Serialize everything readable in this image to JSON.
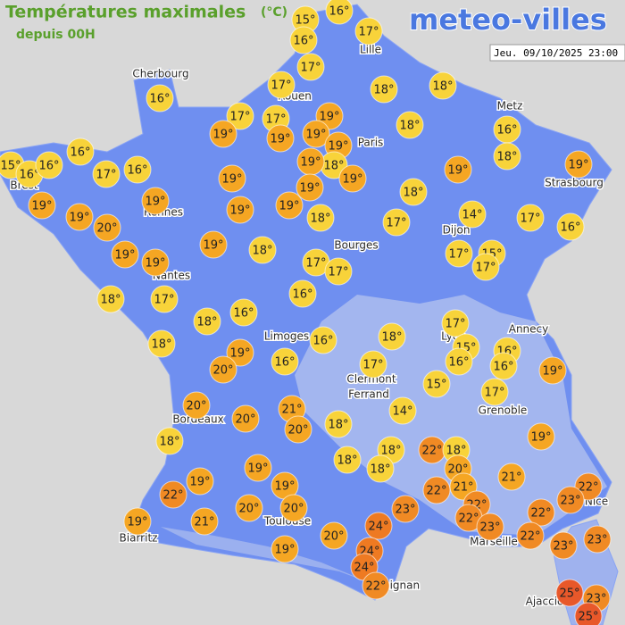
{
  "header": {
    "title": "Températures maximales",
    "unit": "(°C)",
    "subtitle": "depuis 00H",
    "logo": "meteo-villes",
    "datetime": "Jeu. 09/10/2025 23:00"
  },
  "cities": [
    "Cherbourg",
    "Rouen",
    "Lille",
    "Metz",
    "Paris",
    "Strasbourg",
    "Brest",
    "Rennes",
    "Nantes",
    "Bourges",
    "Dijon",
    "Limoges",
    "Annecy",
    "Lyon",
    "Clermont",
    "Ferrand",
    "Grenoble",
    "Bordeaux",
    "Toulouse",
    "Biarritz",
    "Marseille",
    "Nice",
    "Ajaccio",
    "Perpignan"
  ],
  "markers": [
    {
      "label": "15°",
      "color": "#f8d33a"
    },
    {
      "label": "16°",
      "color": "#f8d33a"
    },
    {
      "label": "17°",
      "color": "#f8d33a"
    },
    {
      "label": "16°",
      "color": "#f8d33a"
    },
    {
      "label": "17°",
      "color": "#f8d33a"
    },
    {
      "label": "16°",
      "color": "#f8d33a"
    },
    {
      "label": "17°",
      "color": "#f8d33a"
    },
    {
      "label": "18°",
      "color": "#f8d33a"
    },
    {
      "label": "18°",
      "color": "#f8d33a"
    },
    {
      "label": "17°",
      "color": "#f8d33a"
    },
    {
      "label": "17°",
      "color": "#f8d33a"
    },
    {
      "label": "19°",
      "color": "#f5a623"
    },
    {
      "label": "18°",
      "color": "#f8d33a"
    },
    {
      "label": "16°",
      "color": "#f8d33a"
    },
    {
      "label": "19°",
      "color": "#f5a623"
    },
    {
      "label": "19°",
      "color": "#f5a623"
    },
    {
      "label": "19°",
      "color": "#f5a623"
    },
    {
      "label": "19°",
      "color": "#f5a623"
    },
    {
      "label": "18°",
      "color": "#f8d33a"
    },
    {
      "label": "15°",
      "color": "#f8d33a"
    },
    {
      "label": "16°",
      "color": "#f8d33a"
    },
    {
      "label": "16°",
      "color": "#f8d33a"
    },
    {
      "label": "16°",
      "color": "#f8d33a"
    },
    {
      "label": "17°",
      "color": "#f8d33a"
    },
    {
      "label": "16°",
      "color": "#f8d33a"
    },
    {
      "label": "19°",
      "color": "#f5a623"
    },
    {
      "label": "19°",
      "color": "#f5a623"
    },
    {
      "label": "19°",
      "color": "#f5a623"
    },
    {
      "label": "18°",
      "color": "#f8d33a"
    },
    {
      "label": "19°",
      "color": "#f5a623"
    },
    {
      "label": "19°",
      "color": "#f5a623"
    },
    {
      "label": "19°",
      "color": "#f5a623"
    },
    {
      "label": "19°",
      "color": "#f5a623"
    },
    {
      "label": "19°",
      "color": "#f5a623"
    },
    {
      "label": "19°",
      "color": "#f5a623"
    },
    {
      "label": "19°",
      "color": "#f5a623"
    },
    {
      "label": "18°",
      "color": "#f8d33a"
    },
    {
      "label": "19°",
      "color": "#f5a623"
    },
    {
      "label": "20°",
      "color": "#f5a623"
    },
    {
      "label": "18°",
      "color": "#f8d33a"
    },
    {
      "label": "17°",
      "color": "#f8d33a"
    },
    {
      "label": "14°",
      "color": "#f8d33a"
    },
    {
      "label": "17°",
      "color": "#f8d33a"
    },
    {
      "label": "16°",
      "color": "#f8d33a"
    },
    {
      "label": "19°",
      "color": "#f5a623"
    },
    {
      "label": "19°",
      "color": "#f5a623"
    },
    {
      "label": "19°",
      "color": "#f5a623"
    },
    {
      "label": "18°",
      "color": "#f8d33a"
    },
    {
      "label": "17°",
      "color": "#f8d33a"
    },
    {
      "label": "17°",
      "color": "#f8d33a"
    },
    {
      "label": "17°",
      "color": "#f8d33a"
    },
    {
      "label": "15°",
      "color": "#f8d33a"
    },
    {
      "label": "17°",
      "color": "#f8d33a"
    },
    {
      "label": "18°",
      "color": "#f8d33a"
    },
    {
      "label": "17°",
      "color": "#f8d33a"
    },
    {
      "label": "16°",
      "color": "#f8d33a"
    },
    {
      "label": "18°",
      "color": "#f8d33a"
    },
    {
      "label": "16°",
      "color": "#f8d33a"
    },
    {
      "label": "18°",
      "color": "#f8d33a"
    },
    {
      "label": "19°",
      "color": "#f5a623"
    },
    {
      "label": "16°",
      "color": "#f8d33a"
    },
    {
      "label": "18°",
      "color": "#f8d33a"
    },
    {
      "label": "17°",
      "color": "#f8d33a"
    },
    {
      "label": "15°",
      "color": "#f8d33a"
    },
    {
      "label": "16°",
      "color": "#f8d33a"
    },
    {
      "label": "16°",
      "color": "#f8d33a"
    },
    {
      "label": "16°",
      "color": "#f8d33a"
    },
    {
      "label": "19°",
      "color": "#f5a623"
    },
    {
      "label": "20°",
      "color": "#f5a623"
    },
    {
      "label": "16°",
      "color": "#f8d33a"
    },
    {
      "label": "17°",
      "color": "#f8d33a"
    },
    {
      "label": "15°",
      "color": "#f8d33a"
    },
    {
      "label": "17°",
      "color": "#f8d33a"
    },
    {
      "label": "20°",
      "color": "#f5a623"
    },
    {
      "label": "21°",
      "color": "#f5a623"
    },
    {
      "label": "14°",
      "color": "#f8d33a"
    },
    {
      "label": "20°",
      "color": "#f5a623"
    },
    {
      "label": "20°",
      "color": "#f5a623"
    },
    {
      "label": "18°",
      "color": "#f8d33a"
    },
    {
      "label": "18°",
      "color": "#f8d33a"
    },
    {
      "label": "19°",
      "color": "#f5a623"
    },
    {
      "label": "18°",
      "color": "#f8d33a"
    },
    {
      "label": "22°",
      "color": "#f08a24"
    },
    {
      "label": "18°",
      "color": "#f8d33a"
    },
    {
      "label": "18°",
      "color": "#f8d33a"
    },
    {
      "label": "18°",
      "color": "#f8d33a"
    },
    {
      "label": "20°",
      "color": "#f5a623"
    },
    {
      "label": "21°",
      "color": "#f5a623"
    },
    {
      "label": "19°",
      "color": "#f5a623"
    },
    {
      "label": "19°",
      "color": "#f5a623"
    },
    {
      "label": "22°",
      "color": "#f08a24"
    },
    {
      "label": "19°",
      "color": "#f5a623"
    },
    {
      "label": "21°",
      "color": "#f5a623"
    },
    {
      "label": "22°",
      "color": "#f08a24"
    },
    {
      "label": "22°",
      "color": "#f08a24"
    },
    {
      "label": "23°",
      "color": "#f08a24"
    },
    {
      "label": "20°",
      "color": "#f5a623"
    },
    {
      "label": "20°",
      "color": "#f5a623"
    },
    {
      "label": "23°",
      "color": "#f08a24"
    },
    {
      "label": "22°",
      "color": "#f08a24"
    },
    {
      "label": "22°",
      "color": "#f08a24"
    },
    {
      "label": "22°",
      "color": "#f08a24"
    },
    {
      "label": "19°",
      "color": "#f5a623"
    },
    {
      "label": "21°",
      "color": "#f5a623"
    },
    {
      "label": "24°",
      "color": "#ee7a22"
    },
    {
      "label": "23°",
      "color": "#f08a24"
    },
    {
      "label": "22°",
      "color": "#f08a24"
    },
    {
      "label": "23°",
      "color": "#f08a24"
    },
    {
      "label": "20°",
      "color": "#f5a623"
    },
    {
      "label": "19°",
      "color": "#f5a623"
    },
    {
      "label": "24°",
      "color": "#ee7a22"
    },
    {
      "label": "23°",
      "color": "#f08a24"
    },
    {
      "label": "24°",
      "color": "#ee7a22"
    },
    {
      "label": "22°",
      "color": "#f08a24"
    },
    {
      "label": "25°",
      "color": "#e8582a"
    },
    {
      "label": "23°",
      "color": "#f08a24"
    },
    {
      "label": "25°",
      "color": "#e8582a"
    }
  ]
}
